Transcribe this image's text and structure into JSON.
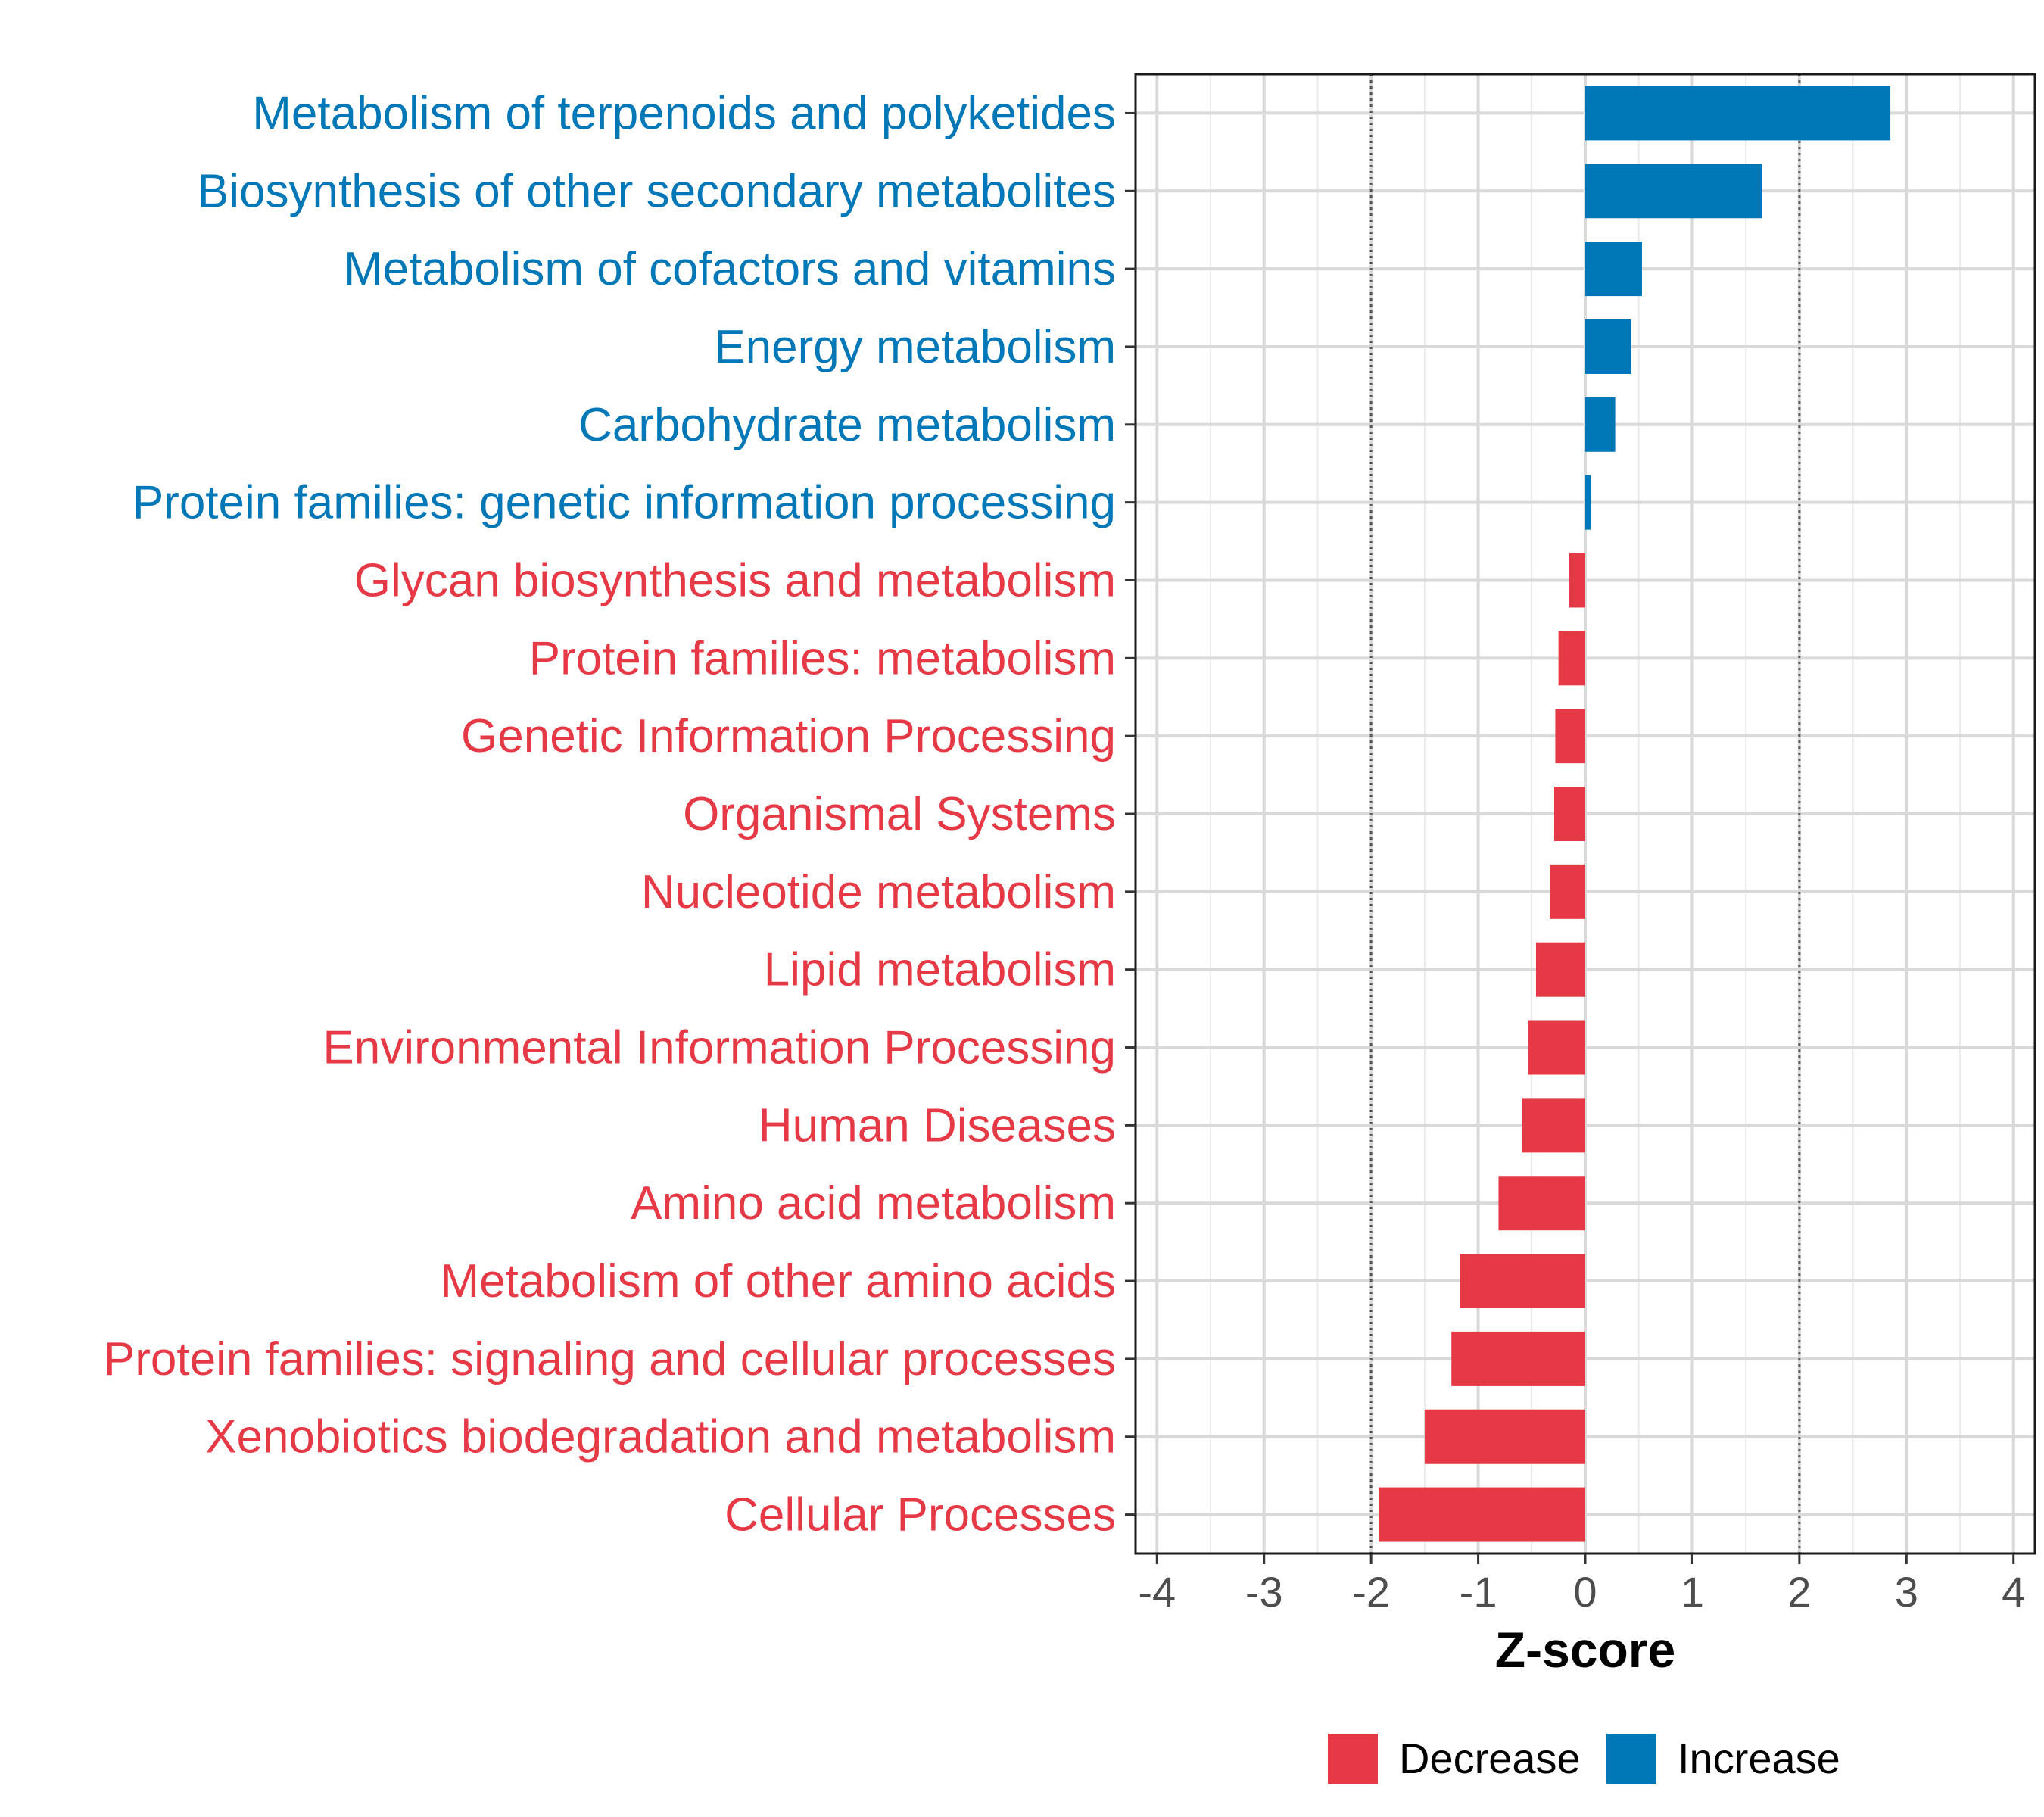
{
  "chart_data": {
    "type": "bar",
    "orientation": "horizontal",
    "title": "",
    "xlabel": "Z-score",
    "ylabel": "",
    "xlim": [
      -4.2,
      4.2
    ],
    "xticks": [
      -4,
      -3,
      -2,
      -1,
      0,
      1,
      2,
      3,
      4
    ],
    "xtick_labels": [
      "-4",
      "-3",
      "-2",
      "-1",
      "0",
      "1",
      "2",
      "3",
      "4"
    ],
    "reference_lines": [
      -2,
      2
    ],
    "grid": true,
    "categories": [
      "Metabolism of terpenoids and polyketides",
      "Biosynthesis of other secondary metabolites",
      "Metabolism of cofactors and vitamins",
      "Energy metabolism",
      "Carbohydrate metabolism",
      "Protein families: genetic information processing",
      "Glycan biosynthesis and metabolism",
      "Protein families: metabolism",
      "Genetic Information Processing",
      "Organismal Systems",
      "Nucleotide metabolism",
      "Lipid metabolism",
      "Environmental Information Processing",
      "Human Diseases",
      "Amino acid metabolism",
      "Metabolism of other amino acids",
      "Protein families: signaling and cellular processes",
      "Xenobiotics biodegradation and metabolism",
      "Cellular Processes"
    ],
    "values": [
      2.85,
      1.65,
      0.53,
      0.43,
      0.28,
      0.05,
      -0.15,
      -0.25,
      -0.28,
      -0.29,
      -0.33,
      -0.46,
      -0.53,
      -0.59,
      -0.81,
      -1.17,
      -1.25,
      -1.5,
      -1.93
    ],
    "groups": [
      "Increase",
      "Increase",
      "Increase",
      "Increase",
      "Increase",
      "Increase",
      "Decrease",
      "Decrease",
      "Decrease",
      "Decrease",
      "Decrease",
      "Decrease",
      "Decrease",
      "Decrease",
      "Decrease",
      "Decrease",
      "Decrease",
      "Decrease",
      "Decrease"
    ],
    "legend": {
      "position": "bottom",
      "entries": [
        {
          "label": "Decrease",
          "color": "#E63946"
        },
        {
          "label": "Increase",
          "color": "#0077B6"
        }
      ]
    },
    "colors": {
      "Decrease": "#E63946",
      "Increase": "#0077B6"
    }
  }
}
